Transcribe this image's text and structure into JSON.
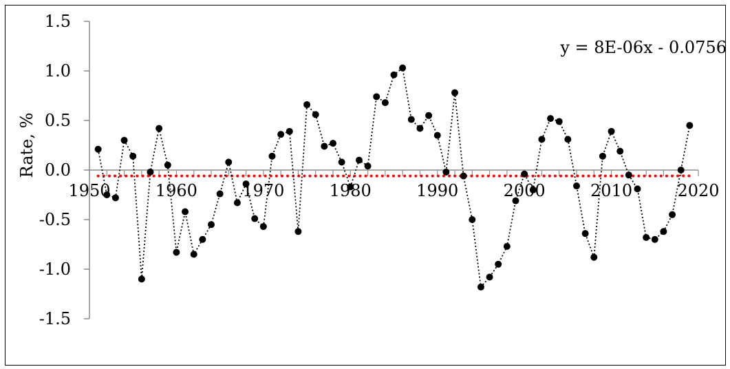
{
  "chart_data": {
    "type": "scatter",
    "title": "",
    "xlabel": "",
    "ylabel": "Rate, %",
    "xlim": [
      1950,
      2020
    ],
    "ylim": [
      -1.5,
      1.5
    ],
    "x_ticks": [
      1950,
      1960,
      1970,
      1980,
      1990,
      2000,
      2010,
      2020
    ],
    "y_ticks": [
      1.5,
      1.0,
      0.5,
      0.0,
      -0.5,
      -1.0,
      -1.5
    ],
    "y_tick_labels": [
      "1.5",
      "1.0",
      "0.5",
      "0.0",
      "-0.5",
      "-1.0",
      "-1.5"
    ],
    "grid": false,
    "series": [
      {
        "marker_color": "#000000",
        "line_style": "dotted",
        "x": [
          1951,
          1952,
          1953,
          1954,
          1955,
          1956,
          1957,
          1958,
          1959,
          1960,
          1961,
          1962,
          1963,
          1964,
          1965,
          1966,
          1967,
          1968,
          1969,
          1970,
          1971,
          1972,
          1973,
          1974,
          1975,
          1976,
          1977,
          1978,
          1979,
          1980,
          1981,
          1982,
          1983,
          1984,
          1985,
          1986,
          1987,
          1988,
          1989,
          1990,
          1991,
          1992,
          1993,
          1994,
          1995,
          1996,
          1997,
          1998,
          1999,
          2000,
          2001,
          2002,
          2003,
          2004,
          2005,
          2006,
          2007,
          2008,
          2009,
          2010,
          2011,
          2012,
          2013,
          2014,
          2015,
          2016,
          2017,
          2018,
          2019
        ],
        "values": [
          0.21,
          -0.25,
          -0.28,
          0.3,
          0.14,
          -1.1,
          -0.02,
          0.42,
          0.05,
          -0.83,
          -0.42,
          -0.85,
          -0.7,
          -0.55,
          -0.24,
          0.08,
          -0.33,
          -0.14,
          -0.49,
          -0.57,
          0.14,
          0.36,
          0.39,
          -0.62,
          0.66,
          0.56,
          0.24,
          0.27,
          0.08,
          -0.17,
          0.1,
          0.04,
          0.74,
          0.68,
          0.96,
          1.03,
          0.51,
          0.42,
          0.55,
          0.35,
          -0.02,
          0.78,
          -0.06,
          -0.5,
          -1.18,
          -1.08,
          -0.95,
          -0.77,
          -0.31,
          -0.04,
          -0.2,
          0.31,
          0.52,
          0.49,
          0.31,
          -0.16,
          -0.64,
          -0.88,
          0.14,
          0.39,
          0.19,
          -0.05,
          -0.19,
          -0.68,
          -0.7,
          -0.62,
          -0.45,
          0.0,
          0.45
        ]
      }
    ],
    "trendline": {
      "color": "#ff0000",
      "line_style": "dotted",
      "slope": 8e-06,
      "intercept": -0.0756,
      "label": "y = 8E-06x - 0.0756"
    }
  }
}
